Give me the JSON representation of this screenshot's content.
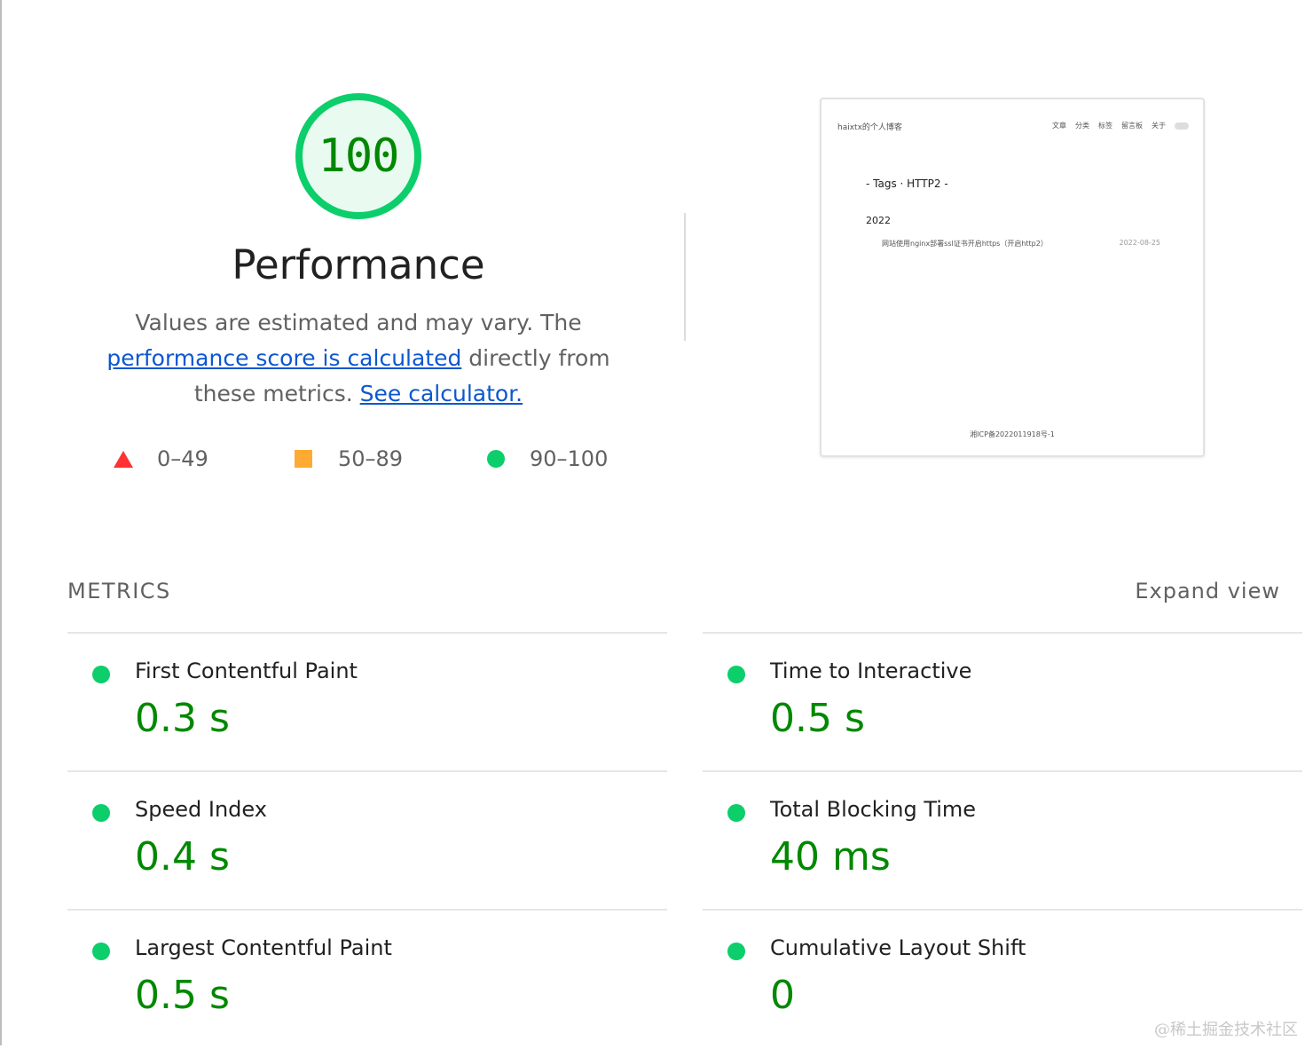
{
  "gauge": {
    "score": "100",
    "title": "Performance",
    "desc_prefix": "Values are estimated and may vary. The ",
    "desc_link_1": "performance score is calculated",
    "desc_middle": " directly from these metrics. ",
    "desc_link_2": "See calculator.",
    "score_fraction": 1.0,
    "colors": {
      "pass": "#0cce6b",
      "pass_text": "#008800",
      "average": "#ffaa33",
      "fail": "#ff3333"
    }
  },
  "legend": {
    "fail": "0–49",
    "average": "50–89",
    "pass": "90–100"
  },
  "screenshot": {
    "site_title": "haixtx的个人博客",
    "nav": [
      "文章",
      "分类",
      "标签",
      "留言板",
      "关于"
    ],
    "heading": "- Tags · HTTP2 -",
    "year": "2022",
    "post_title": "网站使用nginx部署ssl证书开启https（开启http2）",
    "post_date": "2022-08-25",
    "footer": "湘ICP备2022011918号-1"
  },
  "metrics": {
    "section_title": "METRICS",
    "expand_label": "Expand view",
    "items": [
      {
        "title": "First Contentful Paint",
        "value": "0.3 s"
      },
      {
        "title": "Time to Interactive",
        "value": "0.5 s"
      },
      {
        "title": "Speed Index",
        "value": "0.4 s"
      },
      {
        "title": "Total Blocking Time",
        "value": "40 ms"
      },
      {
        "title": "Largest Contentful Paint",
        "value": "0.5 s"
      },
      {
        "title": "Cumulative Layout Shift",
        "value": "0"
      }
    ]
  },
  "watermark": "@稀土掘金技术社区"
}
